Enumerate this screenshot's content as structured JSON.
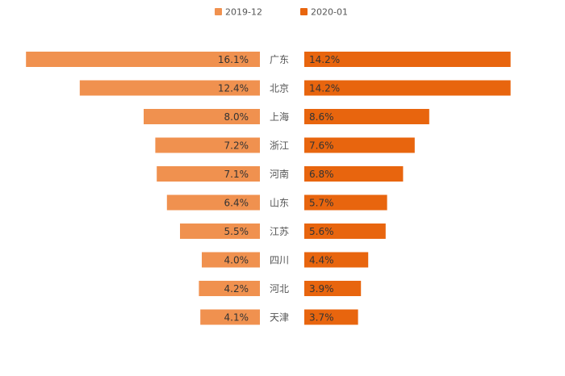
{
  "chart_data": {
    "type": "bar",
    "orientation": "horizontal-butterfly",
    "categories": [
      "广东",
      "北京",
      "上海",
      "浙江",
      "河南",
      "山东",
      "江苏",
      "四川",
      "河北",
      "天津"
    ],
    "series": [
      {
        "name": "2019-12",
        "values": [
          16.1,
          12.4,
          8.0,
          7.2,
          7.1,
          6.4,
          5.5,
          4.0,
          4.2,
          4.1
        ],
        "labels": [
          "16.1%",
          "12.4%",
          "8.0%",
          "7.2%",
          "7.1%",
          "6.4%",
          "5.5%",
          "4.0%",
          "4.2%",
          "4.1%"
        ],
        "color": "#F0914F",
        "side": "left"
      },
      {
        "name": "2020-01",
        "values": [
          14.2,
          14.2,
          8.6,
          7.6,
          6.8,
          5.7,
          5.6,
          4.4,
          3.9,
          3.7
        ],
        "labels": [
          "14.2%",
          "14.2%",
          "8.6%",
          "7.6%",
          "6.8%",
          "5.7%",
          "5.6%",
          "4.4%",
          "3.9%",
          "3.7%"
        ],
        "color": "#E8650E",
        "side": "right"
      }
    ],
    "legend": {
      "position": "top-center"
    },
    "grid": false,
    "value_label_color": "#333333",
    "category_label_color": "#555555"
  }
}
